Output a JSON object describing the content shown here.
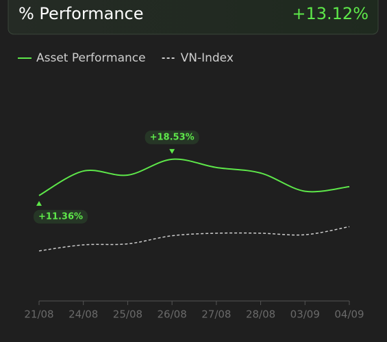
{
  "header": {
    "title": "% Performance",
    "value": "+13.12%"
  },
  "chart_data": {
    "type": "line",
    "categories": [
      "21/08",
      "24/08",
      "25/08",
      "26/08",
      "27/08",
      "28/08",
      "03/09",
      "04/09"
    ],
    "series": [
      {
        "name": "Asset Performance",
        "color": "#5ee84a",
        "dashed": false,
        "values": [
          11.36,
          16.2,
          15.4,
          18.53,
          16.9,
          15.8,
          12.2,
          13.12
        ],
        "value_labels": [
          "+11.36%",
          null,
          null,
          "+18.53%",
          null,
          null,
          null,
          null
        ]
      },
      {
        "name": "VN-Index",
        "color": "#cfcfcf",
        "dashed": true,
        "values": [
          0.4,
          1.6,
          1.8,
          3.4,
          3.9,
          3.9,
          3.6,
          5.2
        ]
      }
    ],
    "ylim": [
      -9.5,
      33.8
    ],
    "legend": "top-left"
  }
}
